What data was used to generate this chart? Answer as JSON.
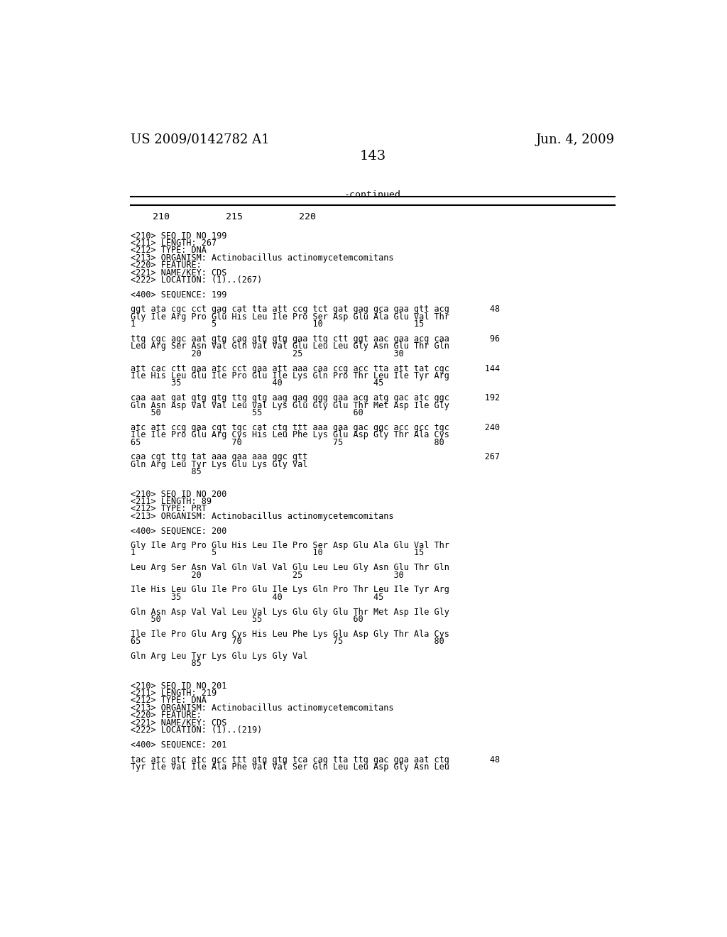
{
  "header_left": "US 2009/0142782 A1",
  "header_right": "Jun. 4, 2009",
  "page_number": "143",
  "continued_label": "-continued",
  "bg_color": "#ffffff",
  "text_color": "#000000",
  "font_size_header": 13,
  "font_size_body": 9.5,
  "content_lines": [
    "<210> SEQ ID NO 199",
    "<211> LENGTH: 267",
    "<212> TYPE: DNA",
    "<213> ORGANISM: Actinobacillus actinomycetemcomitans",
    "<220> FEATURE:",
    "<221> NAME/KEY: CDS",
    "<222> LOCATION: (1)..(267)",
    "",
    "<400> SEQUENCE: 199",
    "",
    "ggt ata cgc cct gag cat tta att ccg tct gat gag gca gaa gtt acg        48",
    "Gly Ile Arg Pro Glu His Leu Ile Pro Ser Asp Glu Ala Glu Val Thr",
    "1               5                   10                  15",
    "",
    "ttg cgc agc aat gtg cag gtg gtg gaa ttg ctt ggt aac gaa acg caa        96",
    "Leu Arg Ser Asn Val Gln Val Val Glu Leu Leu Gly Asn Glu Thr Gln",
    "            20                  25                  30",
    "",
    "att cac ctt gaa atc cct gaa att aaa caa ccg acc tta att tat cgc       144",
    "Ile His Leu Glu Ile Pro Glu Ile Lys Gln Pro Thr Leu Ile Tyr Arg",
    "        35                  40                  45",
    "",
    "caa aat gat gtg gtg ttg gtg aag gag ggg gaa acg atg gac atc ggc       192",
    "Gln Asn Asp Val Val Leu Val Lys Glu Gly Glu Thr Met Asp Ile Gly",
    "    50                  55                  60",
    "",
    "atc att ccg gaa cgt tgc cat ctg ttt aaa gaa gac ggc acc gcc tgc       240",
    "Ile Ile Pro Glu Arg Cys His Leu Phe Lys Glu Asp Gly Thr Ala Cys",
    "65                  70                  75                  80",
    "",
    "caa cgt ttg tat aaa gaa aaa ggc gtt                                   267",
    "Gln Arg Leu Tyr Lys Glu Lys Gly Val",
    "            85",
    "",
    "",
    "<210> SEQ ID NO 200",
    "<211> LENGTH: 89",
    "<212> TYPE: PRT",
    "<213> ORGANISM: Actinobacillus actinomycetemcomitans",
    "",
    "<400> SEQUENCE: 200",
    "",
    "Gly Ile Arg Pro Glu His Leu Ile Pro Ser Asp Glu Ala Glu Val Thr",
    "1               5                   10                  15",
    "",
    "Leu Arg Ser Asn Val Gln Val Val Glu Leu Leu Gly Asn Glu Thr Gln",
    "            20                  25                  30",
    "",
    "Ile His Leu Glu Ile Pro Glu Ile Lys Gln Pro Thr Leu Ile Tyr Arg",
    "        35                  40                  45",
    "",
    "Gln Asn Asp Val Val Leu Val Lys Glu Gly Glu Thr Met Asp Ile Gly",
    "    50                  55                  60",
    "",
    "Ile Ile Pro Glu Arg Cys His Leu Phe Lys Glu Asp Gly Thr Ala Cys",
    "65                  70                  75                  80",
    "",
    "Gln Arg Leu Tyr Lys Glu Lys Gly Val",
    "            85",
    "",
    "",
    "<210> SEQ ID NO 201",
    "<211> LENGTH: 219",
    "<212> TYPE: DNA",
    "<213> ORGANISM: Actinobacillus actinomycetemcomitans",
    "<220> FEATURE:",
    "<221> NAME/KEY: CDS",
    "<222> LOCATION: (1)..(219)",
    "",
    "<400> SEQUENCE: 201",
    "",
    "tac atc gtc atc gcc ttt gtg gtg tca cag tta ttg gac gga aat ctg        48",
    "Tyr Ile Val Ile Ala Phe Val Val Ser Gln Leu Leu Asp Gly Asn Leu"
  ]
}
